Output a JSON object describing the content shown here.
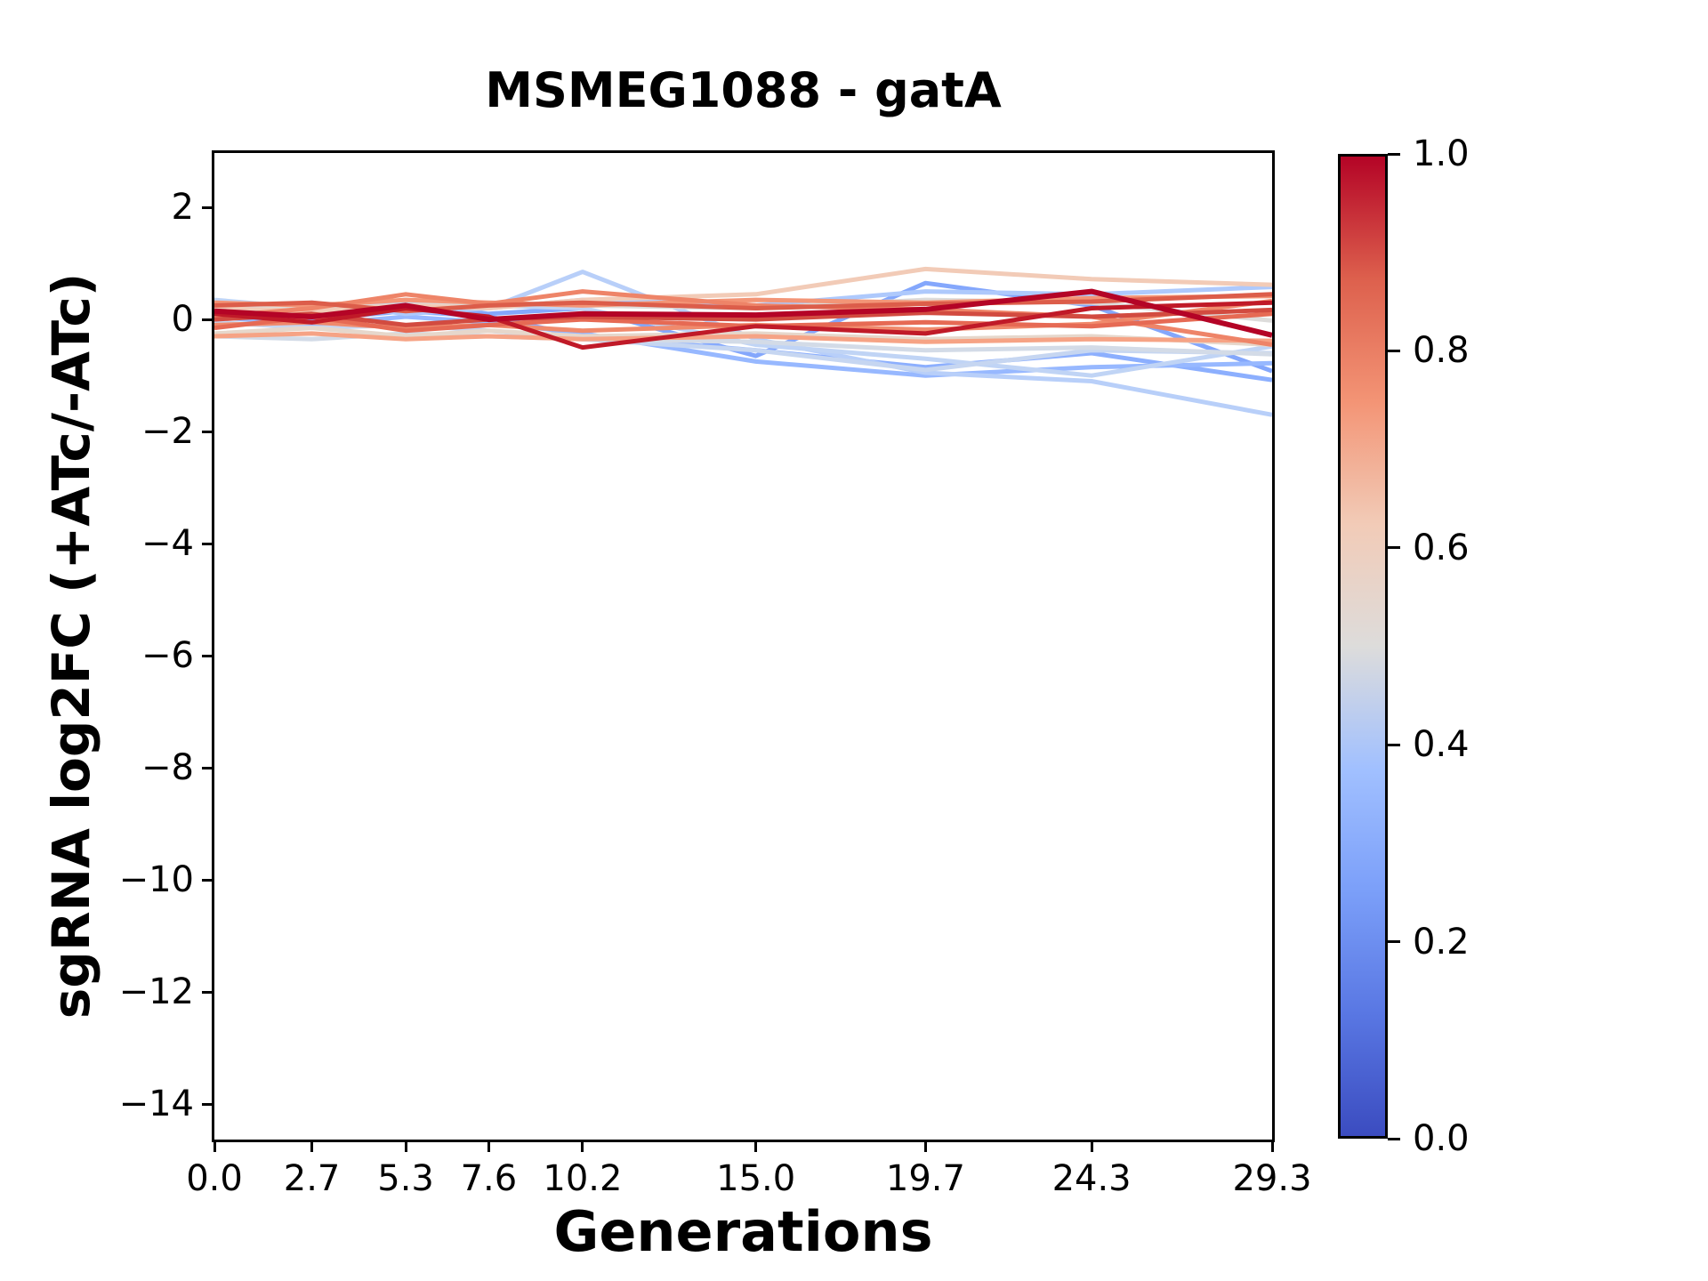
{
  "chart_data": {
    "type": "line",
    "title": "MSMEG1088 - gatA",
    "xlabel": "Generations",
    "ylabel": "sgRNA log2FC (+ATc/-ATc)",
    "grid": false,
    "legend": "colorbar-right",
    "xlim": [
      0,
      29.3
    ],
    "ylim": [
      -14.63,
      2.97
    ],
    "x": [
      0.0,
      2.7,
      5.3,
      7.6,
      10.2,
      15.0,
      19.7,
      24.3,
      29.3
    ],
    "xticks": {
      "values": [
        0.0,
        2.7,
        5.3,
        7.6,
        10.2,
        15.0,
        19.7,
        24.3,
        29.3
      ],
      "labels": [
        "0.0",
        "2.7",
        "5.3",
        "7.6",
        "10.2",
        "15.0",
        "19.7",
        "24.3",
        "29.3"
      ]
    },
    "yticks": {
      "values": [
        2,
        0,
        -2,
        -4,
        -6,
        -8,
        -10,
        -12,
        -14
      ],
      "labels": [
        "2",
        "0",
        "−2",
        "−4",
        "−6",
        "−8",
        "−10",
        "−12",
        "−14"
      ]
    },
    "series": [
      {
        "c": 0.22,
        "color": "#84a7fc",
        "y": [
          0.2,
          0.1,
          0.25,
          0.1,
          0.2,
          -0.65,
          0.65,
          0.25,
          -0.92
        ]
      },
      {
        "c": 0.25,
        "color": "#8caffe",
        "y": [
          0.1,
          0.0,
          0.15,
          0.05,
          -0.3,
          -0.55,
          -0.85,
          -0.6,
          -1.08
        ]
      },
      {
        "c": 0.28,
        "color": "#97b8ff",
        "y": [
          0.05,
          -0.1,
          0.05,
          -0.05,
          -0.25,
          -0.75,
          -1.0,
          -0.85,
          -0.78
        ]
      },
      {
        "c": 0.35,
        "color": "#aec9fc",
        "y": [
          0.15,
          0.3,
          0.1,
          0.2,
          0.35,
          0.25,
          0.5,
          0.45,
          0.58
        ]
      },
      {
        "c": 0.38,
        "color": "#b8cff9",
        "y": [
          0.3,
          0.15,
          0.35,
          0.2,
          0.85,
          -0.35,
          -0.95,
          -1.1,
          -1.7
        ]
      },
      {
        "c": 0.4,
        "color": "#c0d4f5",
        "y": [
          0.35,
          0.2,
          0.3,
          0.25,
          0.2,
          -0.45,
          -0.7,
          -1.0,
          -0.48
        ]
      },
      {
        "c": 0.43,
        "color": "#c6d6f1",
        "y": [
          -0.05,
          -0.15,
          -0.1,
          -0.2,
          -0.35,
          -0.55,
          -0.9,
          -0.55,
          -0.6
        ]
      },
      {
        "c": 0.46,
        "color": "#d3dbe7",
        "y": [
          -0.3,
          -0.35,
          -0.25,
          -0.3,
          -0.35,
          -0.4,
          -0.55,
          -0.5,
          -0.62
        ]
      },
      {
        "c": 0.5,
        "color": "#dddcdb",
        "y": [
          0.3,
          0.2,
          0.25,
          0.3,
          0.25,
          0.2,
          0.35,
          0.3,
          -0.02
        ]
      },
      {
        "c": 0.55,
        "color": "#e6d7cb",
        "y": [
          -0.25,
          -0.15,
          -0.3,
          -0.2,
          -0.3,
          -0.25,
          -0.35,
          -0.3,
          -0.45
        ]
      },
      {
        "c": 0.6,
        "color": "#f2cbb7",
        "y": [
          0.2,
          0.15,
          0.25,
          0.2,
          0.35,
          0.45,
          0.9,
          0.72,
          0.62
        ]
      },
      {
        "c": 0.7,
        "color": "#f6a385",
        "y": [
          -0.3,
          -0.25,
          -0.35,
          -0.3,
          -0.35,
          -0.3,
          -0.4,
          -0.35,
          -0.38
        ]
      },
      {
        "c": 0.75,
        "color": "#f39577",
        "y": [
          0.3,
          0.25,
          0.35,
          0.3,
          0.25,
          0.35,
          0.3,
          0.38,
          0.42
        ]
      },
      {
        "c": 0.78,
        "color": "#f08a6c",
        "y": [
          -0.1,
          -0.05,
          -0.15,
          -0.1,
          -0.2,
          -0.1,
          -0.18,
          -0.08,
          0.33
        ]
      },
      {
        "c": 0.8,
        "color": "#ee8468",
        "y": [
          0.05,
          0.2,
          0.45,
          0.28,
          0.5,
          0.25,
          0.18,
          0.05,
          -0.45
        ]
      },
      {
        "c": 0.82,
        "color": "#e66a54",
        "y": [
          -0.15,
          0.05,
          -0.2,
          -0.1,
          0.0,
          -0.12,
          -0.05,
          -0.12,
          0.1
        ]
      },
      {
        "c": 0.85,
        "color": "#dc5d4a",
        "y": [
          0.25,
          0.3,
          0.15,
          0.25,
          0.3,
          0.2,
          0.28,
          0.32,
          0.45
        ]
      },
      {
        "c": 0.9,
        "color": "#d24b40",
        "y": [
          0.0,
          0.1,
          -0.1,
          0.0,
          0.05,
          0.0,
          0.12,
          0.05,
          0.17
        ]
      },
      {
        "c": 0.96,
        "color": "#c01a28",
        "y": [
          0.1,
          -0.05,
          0.2,
          0.05,
          -0.5,
          -0.12,
          -0.25,
          0.2,
          0.3
        ]
      },
      {
        "c": 1.0,
        "color": "#b40426",
        "lw": 6,
        "y": [
          0.15,
          0.05,
          0.25,
          0.0,
          0.1,
          0.08,
          0.18,
          0.5,
          -0.28
        ]
      }
    ],
    "colorbar": {
      "colormap": "coolwarm",
      "range": [
        0.0,
        1.0
      ],
      "ticks": {
        "values": [
          1.0,
          0.8,
          0.6,
          0.4,
          0.2,
          0.0
        ],
        "labels": [
          "1.0",
          "0.8",
          "0.6",
          "0.4",
          "0.2",
          "0.0"
        ]
      },
      "gradient_stops_bottom_to_top": [
        "#3b4cc0",
        "#5977e3",
        "#7b9ff9",
        "#a1c0ff",
        "#dddcdb",
        "#f2cbb7",
        "#f39475",
        "#dd604d",
        "#b40426"
      ]
    }
  },
  "style": {
    "axis_color": "#000000",
    "background": "#ffffff"
  }
}
